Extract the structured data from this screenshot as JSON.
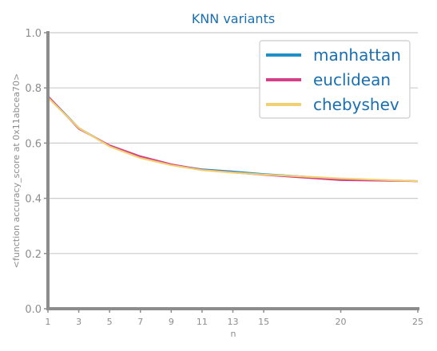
{
  "colors": {
    "title": "#1a6fb0",
    "legend_text": "#1a6fb0",
    "grid": "#cccccc",
    "axis": "#8c8c8c"
  },
  "chart_data": {
    "type": "line",
    "title": "KNN variants",
    "xlabel": "n",
    "ylabel": "<function accuracy_score at 0x11abcea70>",
    "xlim": [
      1,
      25
    ],
    "ylim": [
      0.0,
      1.0
    ],
    "x_ticks": [
      1,
      3,
      5,
      7,
      9,
      11,
      13,
      15,
      20,
      25
    ],
    "y_ticks": [
      0.0,
      0.2,
      0.4,
      0.6,
      0.8,
      1.0
    ],
    "y_tick_labels": [
      "0.0",
      "0.2",
      "0.4",
      "0.6",
      "0.8",
      "1.0"
    ],
    "grid": "horizontal",
    "legend_position": "top-right",
    "x": [
      1,
      3,
      5,
      7,
      9,
      11,
      13,
      15,
      20,
      25
    ],
    "series": [
      {
        "name": "manhattan",
        "color": "#1f8fc8",
        "values": [
          0.77,
          0.655,
          0.59,
          0.55,
          0.522,
          0.505,
          0.497,
          0.488,
          0.47,
          0.462
        ]
      },
      {
        "name": "euclidean",
        "color": "#d63f87",
        "values": [
          0.77,
          0.652,
          0.592,
          0.552,
          0.523,
          0.503,
          0.494,
          0.485,
          0.466,
          0.462
        ]
      },
      {
        "name": "chebyshev",
        "color": "#f0d070",
        "values": [
          0.765,
          0.655,
          0.588,
          0.546,
          0.52,
          0.502,
          0.493,
          0.486,
          0.472,
          0.462
        ]
      }
    ]
  }
}
